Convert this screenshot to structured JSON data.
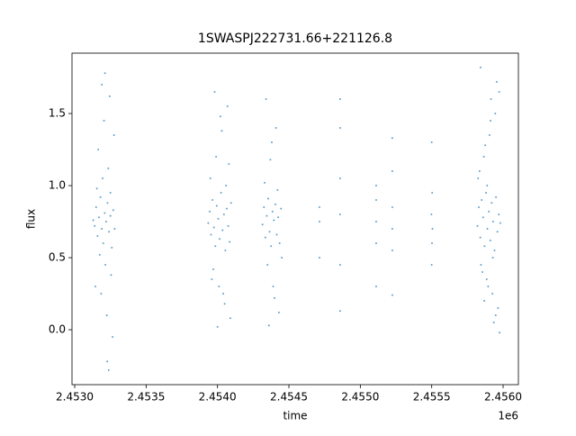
{
  "chart_data": {
    "type": "scatter",
    "title": "1SWASPJ222731.66+221126.8",
    "x_label": "time",
    "y_label": "flux",
    "x_offset_label": "1e6",
    "color": "#1f77b4",
    "xlim": [
      2452981,
      2456107
    ],
    "ylim": [
      -0.381,
      1.919
    ],
    "xticks": [
      {
        "value": 2453000,
        "label": "2.4530"
      },
      {
        "value": 2453500,
        "label": "2.4535"
      },
      {
        "value": 2454000,
        "label": "2.4540"
      },
      {
        "value": 2454500,
        "label": "2.4545"
      },
      {
        "value": 2455000,
        "label": "2.4550"
      },
      {
        "value": 2455500,
        "label": "2.4555"
      },
      {
        "value": 2456000,
        "label": "2.4560"
      }
    ],
    "yticks": [
      {
        "value": 0,
        "label": "0.0"
      },
      0.5,
      {
        "value": 1,
        "label": "1.0"
      },
      1.5
    ],
    "x": [
      2453140,
      2453150,
      2453160,
      2453170,
      2453180,
      2453190,
      2453200,
      2453210,
      2453220,
      2453230,
      2453240,
      2453250,
      2453260,
      2453270,
      2453155,
      2453175,
      2453195,
      2453215,
      2453235,
      2453255,
      2453165,
      2453185,
      2453205,
      2453225,
      2453245,
      2453265,
      2453212,
      2453238,
      2453275,
      2453145,
      2453130,
      2453280,
      2453228,
      2453190,
      2453250,
      2453935,
      2453945,
      2453955,
      2453965,
      2453975,
      2453985,
      2453995,
      2454005,
      2454015,
      2454025,
      2454035,
      2454045,
      2454055,
      2454065,
      2454075,
      2454085,
      2454095,
      2453950,
      2453970,
      2453990,
      2454010,
      2454030,
      2454050,
      2454070,
      2454090,
      2453980,
      2454000,
      2454020,
      2454040,
      2454060,
      2453960,
      2454080,
      2454315,
      2454325,
      2454335,
      2454345,
      2454355,
      2454365,
      2454375,
      2454385,
      2454395,
      2454405,
      2454415,
      2454425,
      2454435,
      2454445,
      2454330,
      2454350,
      2454370,
      2454390,
      2454410,
      2454430,
      2454340,
      2454360,
      2454380,
      2454400,
      2454420,
      2454450,
      2454714,
      2454714,
      2454714,
      2454859,
      2454859,
      2454859,
      2454859,
      2454859,
      2454859,
      2455111,
      2455111,
      2455111,
      2455111,
      2455111,
      2455224,
      2455224,
      2455224,
      2455224,
      2455224,
      2455224,
      2455500,
      2455502,
      2455505,
      2455498,
      2455503,
      2455500,
      2455820,
      2455830,
      2455840,
      2455850,
      2455860,
      2455870,
      2455880,
      2455890,
      2455900,
      2455910,
      2455920,
      2455930,
      2455940,
      2455950,
      2455960,
      2455970,
      2455980,
      2455825,
      2455845,
      2455865,
      2455885,
      2455905,
      2455925,
      2455945,
      2455965,
      2455835,
      2455855,
      2455875,
      2455895,
      2455915,
      2455935,
      2455955,
      2455975,
      2455842,
      2455868,
      2455912,
      2455948,
      2455972,
      2455888,
      2455928
    ],
    "values": [
      0.72,
      0.85,
      0.65,
      0.78,
      0.92,
      0.7,
      0.6,
      0.81,
      0.75,
      0.88,
      0.68,
      0.79,
      0.57,
      0.83,
      0.98,
      0.52,
      1.05,
      0.45,
      1.12,
      0.38,
      1.25,
      0.25,
      1.45,
      0.1,
      1.62,
      -0.05,
      1.78,
      -0.28,
      1.35,
      0.3,
      0.76,
      0.7,
      -0.22,
      1.7,
      0.95,
      0.74,
      0.82,
      0.66,
      0.9,
      0.71,
      0.58,
      0.86,
      0.77,
      0.63,
      0.95,
      0.69,
      0.8,
      0.55,
      0.84,
      0.72,
      0.61,
      0.88,
      1.05,
      0.42,
      1.2,
      0.3,
      1.38,
      0.18,
      1.55,
      0.08,
      1.65,
      0.02,
      1.48,
      0.25,
      1.0,
      0.35,
      1.15,
      0.73,
      0.85,
      0.64,
      0.79,
      0.91,
      0.68,
      0.58,
      0.82,
      0.76,
      0.87,
      0.66,
      0.78,
      0.6,
      0.84,
      1.02,
      0.45,
      1.18,
      0.3,
      1.4,
      0.12,
      1.6,
      0.03,
      1.3,
      0.22,
      0.97,
      0.5,
      0.85,
      0.75,
      0.5,
      0.13,
      0.45,
      0.8,
      1.05,
      1.4,
      1.6,
      0.3,
      0.6,
      0.75,
      0.9,
      1.0,
      0.24,
      0.55,
      0.7,
      0.85,
      1.1,
      1.33,
      0.45,
      0.6,
      0.7,
      0.8,
      0.95,
      1.3,
      0.72,
      0.85,
      0.64,
      0.9,
      0.78,
      0.58,
      0.95,
      0.7,
      0.82,
      0.62,
      0.88,
      0.75,
      0.55,
      0.92,
      0.68,
      0.8,
      0.74,
      1.05,
      0.45,
      1.2,
      0.35,
      1.35,
      0.25,
      1.5,
      0.15,
      1.1,
      0.4,
      1.28,
      0.3,
      1.6,
      0.05,
      1.72,
      -0.02,
      1.82,
      0.2,
      1.45,
      0.1,
      1.65,
      1.0,
      0.5
    ]
  }
}
